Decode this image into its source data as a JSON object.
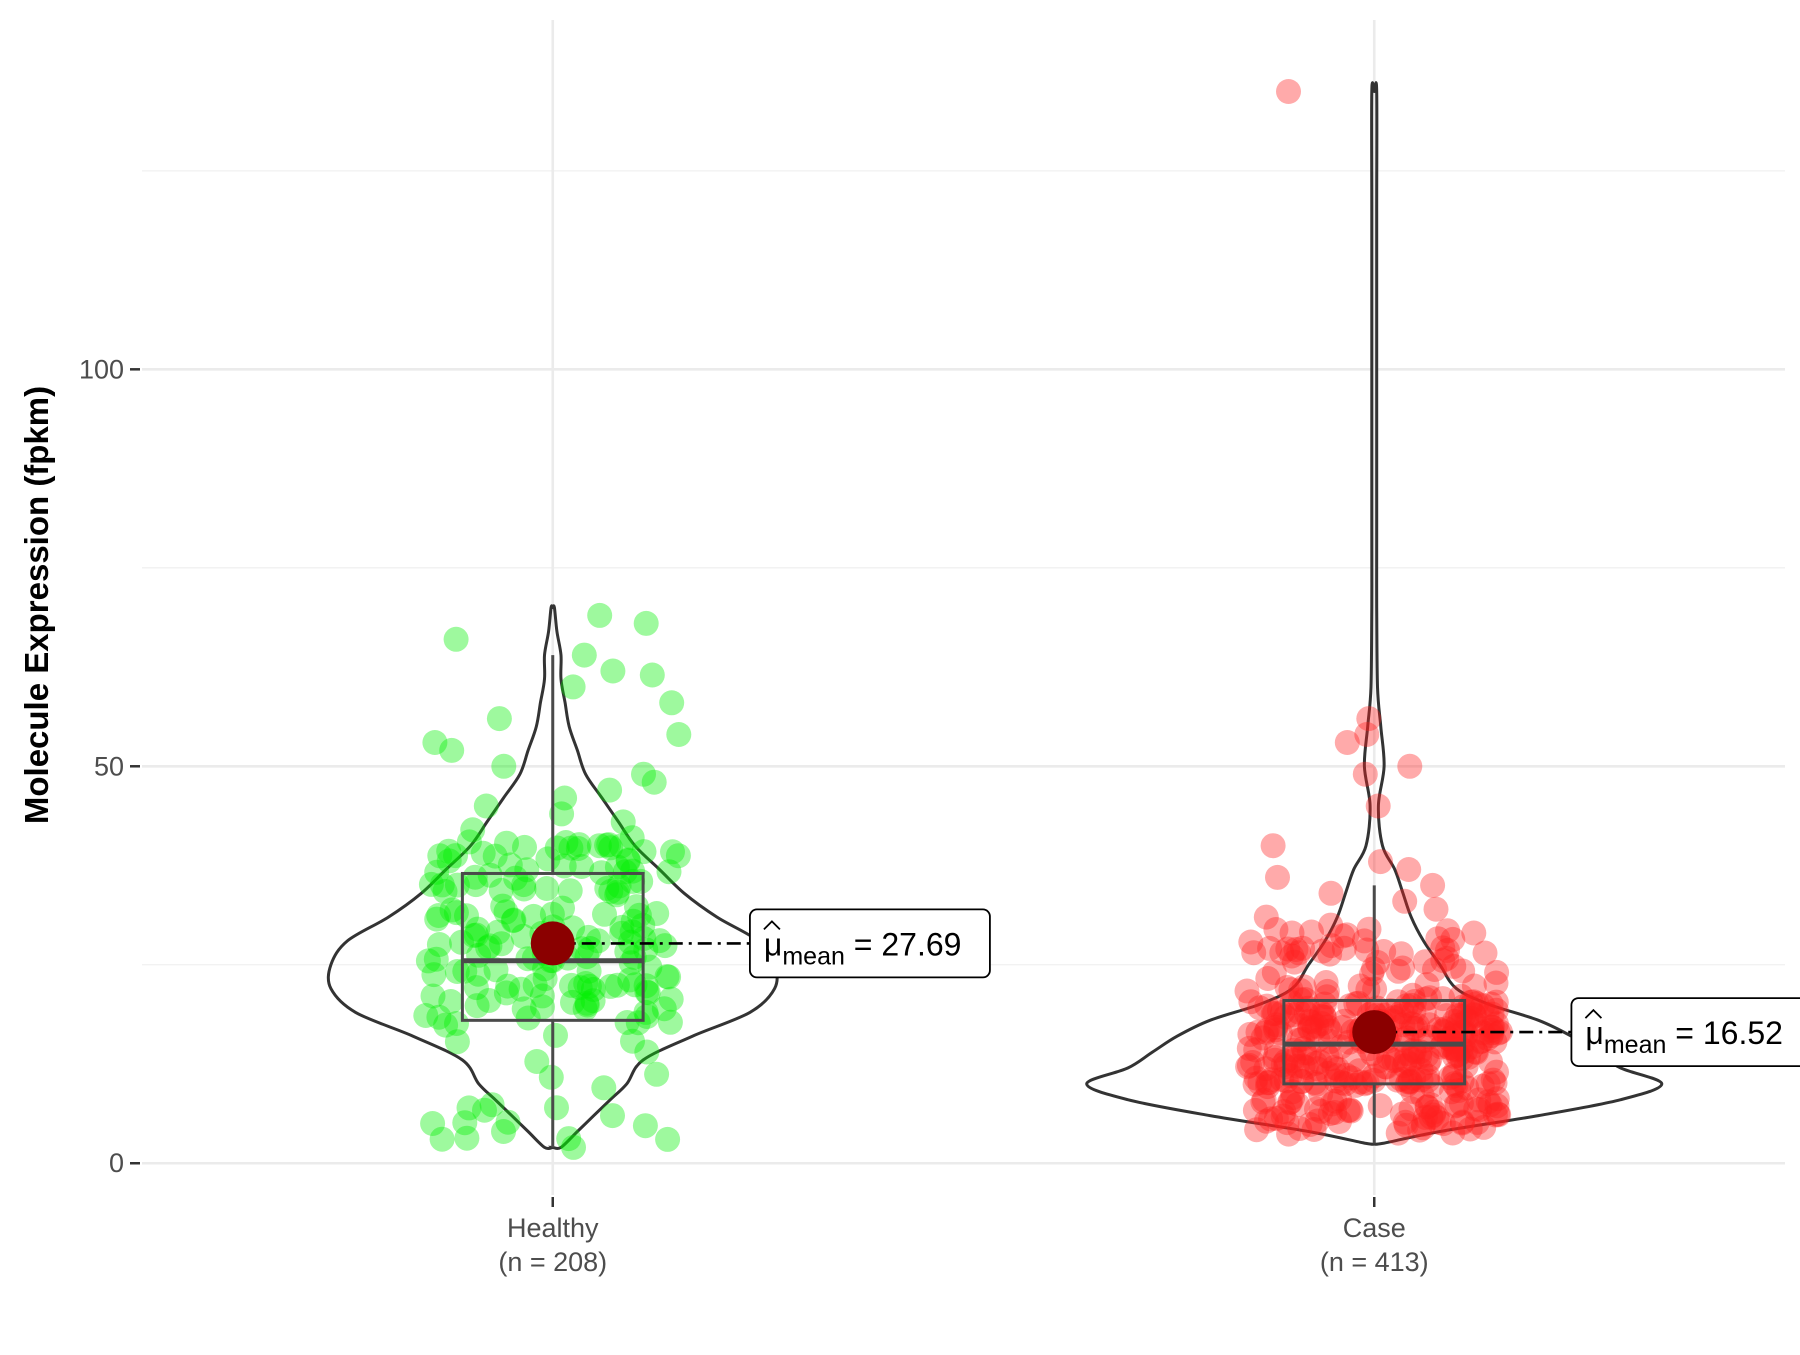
{
  "chart_data": {
    "type": "violin-box-scatter",
    "ylabel": "Molecule Expression (fpkm)",
    "xlabel": "",
    "ylim": [
      -4,
      144
    ],
    "yticks": [
      0,
      50,
      100
    ],
    "ytick_labels": [
      "0",
      "50",
      "100"
    ],
    "grid": true,
    "mean_symbol": "μ",
    "mean_subscript": "mean",
    "groups": [
      {
        "name": "Healthy",
        "n_label": "(n = 208)",
        "n": 208,
        "color": "#00ee00",
        "mean": 27.69,
        "mean_label": "27.69",
        "box": {
          "q1": 18,
          "median": 25.5,
          "q3": 36.5,
          "whisker_low": 2,
          "whisker_high": 64
        },
        "violin": {
          "y": [
            2,
            4,
            6,
            8,
            10,
            13,
            16,
            19,
            22,
            25,
            28,
            31,
            34,
            37,
            40,
            43,
            46,
            49,
            52,
            55,
            58,
            61,
            64,
            67,
            70
          ],
          "width": [
            0.01,
            0.03,
            0.05,
            0.07,
            0.09,
            0.11,
            0.17,
            0.24,
            0.27,
            0.27,
            0.25,
            0.2,
            0.16,
            0.13,
            0.1,
            0.08,
            0.06,
            0.04,
            0.03,
            0.02,
            0.015,
            0.01,
            0.01,
            0.005,
            0.002
          ]
        },
        "outlier_points": [
          68,
          69,
          66,
          64,
          62,
          61.5,
          60,
          58,
          56,
          54,
          53,
          52,
          50,
          49,
          48,
          47,
          46,
          45,
          44,
          43,
          42,
          41,
          40,
          2,
          3,
          4,
          5,
          6,
          7
        ]
      },
      {
        "name": "Case",
        "n_label": "(n = 413)",
        "n": 413,
        "color": "#ff2020",
        "mean": 16.52,
        "mean_label": "16.52",
        "box": {
          "q1": 10,
          "median": 15,
          "q3": 20.5,
          "whisker_low": 2.5,
          "whisker_high": 35
        },
        "violin": {
          "y": [
            2.5,
            4,
            6,
            8,
            10,
            12,
            14,
            16,
            18,
            20,
            22,
            25,
            28,
            31,
            34,
            37,
            40,
            45,
            50,
            55,
            60,
            70,
            80,
            100,
            120,
            135
          ],
          "width": [
            0.01,
            0.08,
            0.2,
            0.3,
            0.35,
            0.3,
            0.27,
            0.24,
            0.2,
            0.14,
            0.1,
            0.08,
            0.06,
            0.045,
            0.035,
            0.025,
            0.01,
            0.005,
            0.012,
            0.008,
            0.004,
            0.003,
            0.003,
            0.003,
            0.003,
            0.003
          ]
        },
        "outlier_points": [
          135,
          56,
          54,
          53,
          50,
          49,
          45,
          40,
          38,
          37,
          36,
          35,
          34,
          33,
          32,
          31,
          30,
          29,
          28
        ]
      }
    ]
  }
}
